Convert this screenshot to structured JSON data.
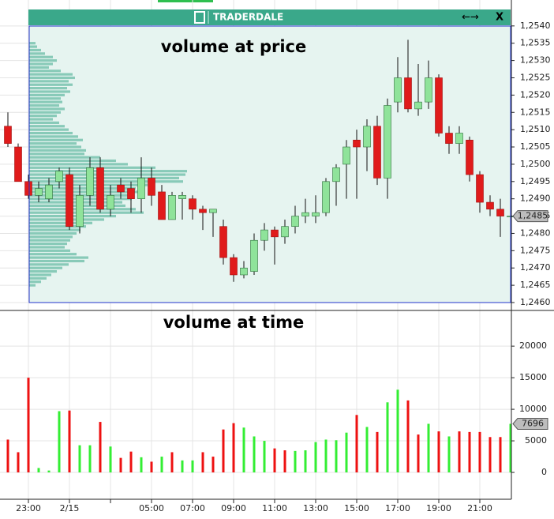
{
  "chart_data": [
    {
      "type": "candlestick",
      "annotation": "volume at price",
      "overlay_title": "TRADERDALE",
      "overlay_buttons": [
        "←→",
        "X"
      ],
      "open": [
        1.2511,
        1.2505,
        1.2495,
        1.2491,
        1.249,
        1.2495,
        1.2497,
        1.2482,
        1.2491,
        1.2499,
        1.2487,
        1.2494,
        1.2493,
        1.249,
        1.2496,
        1.2492,
        1.2484,
        1.249,
        1.249,
        1.2487,
        1.2486,
        1.2482,
        1.2473,
        1.2468,
        1.2469,
        1.2478,
        1.2481,
        1.2479,
        1.2482,
        1.2485,
        1.2485,
        1.2486,
        1.2495,
        1.25,
        1.2507,
        1.2505,
        1.2511,
        1.2496,
        1.2518,
        1.2525,
        1.2516,
        1.2518,
        1.2525,
        1.2509,
        1.2506,
        1.2507,
        1.2497,
        1.2489,
        1.2487,
        1.2485
      ],
      "high": [
        1.2515,
        1.2506,
        1.2497,
        1.2495,
        1.2496,
        1.2499,
        1.2499,
        1.2494,
        1.2502,
        1.2502,
        1.2494,
        1.2496,
        1.2495,
        1.2502,
        1.2499,
        1.2494,
        1.2492,
        1.2492,
        1.2491,
        1.2488,
        1.2487,
        1.2484,
        1.2474,
        1.2472,
        1.248,
        1.2483,
        1.2482,
        1.2484,
        1.2488,
        1.249,
        1.2491,
        1.2496,
        1.25,
        1.2507,
        1.251,
        1.2513,
        1.2514,
        1.2519,
        1.2531,
        1.2536,
        1.2529,
        1.253,
        1.2526,
        1.2511,
        1.2511,
        1.2508,
        1.2498,
        1.2491,
        1.249,
        1.2492
      ],
      "low": [
        1.2505,
        1.2495,
        1.249,
        1.2489,
        1.2489,
        1.2493,
        1.2481,
        1.248,
        1.2488,
        1.2486,
        1.2485,
        1.249,
        1.2486,
        1.2486,
        1.2488,
        1.2484,
        1.2484,
        1.2484,
        1.2484,
        1.2481,
        1.2479,
        1.2471,
        1.2466,
        1.2467,
        1.2468,
        1.2475,
        1.2471,
        1.2477,
        1.248,
        1.2483,
        1.2483,
        1.2485,
        1.2488,
        1.249,
        1.249,
        1.2498,
        1.2494,
        1.249,
        1.2515,
        1.2515,
        1.2514,
        1.2516,
        1.2508,
        1.2503,
        1.2503,
        1.2495,
        1.2486,
        1.2485,
        1.2479,
        1.2485
      ],
      "close": [
        1.2506,
        1.2495,
        1.2491,
        1.2493,
        1.2494,
        1.2498,
        1.2482,
        1.2491,
        1.2499,
        1.2487,
        1.2491,
        1.2492,
        1.249,
        1.2496,
        1.2491,
        1.2484,
        1.2491,
        1.2491,
        1.2487,
        1.2486,
        1.2487,
        1.2473,
        1.2468,
        1.247,
        1.2478,
        1.2481,
        1.2479,
        1.2482,
        1.2485,
        1.2486,
        1.2486,
        1.2495,
        1.2499,
        1.2505,
        1.2505,
        1.2511,
        1.2496,
        1.2517,
        1.2525,
        1.2516,
        1.2518,
        1.2525,
        1.2509,
        1.2506,
        1.2509,
        1.2497,
        1.2489,
        1.2487,
        1.2485,
        1.2485
      ],
      "up_color": "#8fe39a",
      "down_color": "#e01b1b",
      "ylim": [
        1.24584,
        1.25475
      ],
      "yticks": [
        {
          "value": 1.254,
          "label": "1,2540"
        },
        {
          "value": 1.2535,
          "label": "1,2535"
        },
        {
          "value": 1.253,
          "label": "1,2530"
        },
        {
          "value": 1.2525,
          "label": "1,2525"
        },
        {
          "value": 1.252,
          "label": "1,2520"
        },
        {
          "value": 1.2515,
          "label": "1,2515"
        },
        {
          "value": 1.251,
          "label": "1,2510"
        },
        {
          "value": 1.2505,
          "label": "1,2505"
        },
        {
          "value": 1.25,
          "label": "1,2500"
        },
        {
          "value": 1.2495,
          "label": "1,2495"
        },
        {
          "value": 1.249,
          "label": "1,2490"
        },
        {
          "value": 1.2485,
          "label": "1,2485"
        },
        {
          "value": 1.248,
          "label": "1,2480"
        },
        {
          "value": 1.2475,
          "label": "1,2475"
        },
        {
          "value": 1.247,
          "label": "1,2470"
        },
        {
          "value": 1.2465,
          "label": "1,2465"
        },
        {
          "value": 1.246,
          "label": "1,2460"
        }
      ],
      "last_price": {
        "value": 1.2485,
        "label": "1,2485"
      },
      "grid": true,
      "volume_profile": {
        "prices": [
          1.2535,
          1.2534,
          1.2533,
          1.2532,
          1.2531,
          1.253,
          1.2529,
          1.2528,
          1.2527,
          1.2526,
          1.2525,
          1.2524,
          1.2523,
          1.2522,
          1.2521,
          1.252,
          1.2519,
          1.2518,
          1.2517,
          1.2516,
          1.2515,
          1.2514,
          1.2513,
          1.2512,
          1.2511,
          1.251,
          1.2509,
          1.2508,
          1.2507,
          1.2506,
          1.2505,
          1.2504,
          1.2503,
          1.2502,
          1.2501,
          1.25,
          1.2499,
          1.2498,
          1.2497,
          1.2496,
          1.2495,
          1.2494,
          1.2493,
          1.2492,
          1.2491,
          1.249,
          1.2489,
          1.2488,
          1.2487,
          1.2486,
          1.2485,
          1.2484,
          1.2483,
          1.2482,
          1.2481,
          1.248,
          1.2479,
          1.2478,
          1.2477,
          1.2476,
          1.2475,
          1.2474,
          1.2473,
          1.2472,
          1.2471,
          1.247,
          1.2469,
          1.2468,
          1.2467,
          1.2466,
          1.2465
        ],
        "values": [
          8,
          10,
          15,
          20,
          30,
          35,
          30,
          25,
          40,
          55,
          58,
          50,
          55,
          48,
          52,
          45,
          40,
          42,
          38,
          45,
          40,
          35,
          30,
          38,
          45,
          50,
          55,
          62,
          68,
          60,
          66,
          72,
          70,
          90,
          110,
          125,
          160,
          200,
          198,
          190,
          195,
          150,
          135,
          140,
          128,
          130,
          118,
          122,
          135,
          145,
          110,
          95,
          80,
          72,
          65,
          60,
          55,
          52,
          48,
          45,
          52,
          60,
          75,
          70,
          50,
          42,
          35,
          28,
          22,
          15,
          8
        ],
        "xlim": [
          0,
          610
        ],
        "color": "#3aa88a"
      }
    },
    {
      "type": "bar",
      "annotation": "volume at time",
      "categories": [
        null,
        null,
        "23:00",
        null,
        null,
        null,
        "2/15",
        null,
        null,
        null,
        null,
        null,
        null,
        null,
        "05:00",
        null,
        null,
        null,
        "07:00",
        null,
        null,
        null,
        "09:00",
        null,
        null,
        null,
        "11:00",
        null,
        null,
        null,
        "13:00",
        null,
        null,
        null,
        "15:00",
        null,
        null,
        null,
        "17:00",
        null,
        null,
        null,
        "19:00",
        null,
        null,
        null,
        "21:00",
        null,
        null,
        null
      ],
      "values": [
        5200,
        3200,
        15000,
        700,
        300,
        9700,
        9800,
        4300,
        4300,
        8000,
        4100,
        2300,
        3300,
        2400,
        1700,
        2500,
        3200,
        1900,
        1900,
        3200,
        2500,
        6800,
        7800,
        7100,
        5700,
        5000,
        3800,
        3500,
        3400,
        3500,
        4800,
        5200,
        5100,
        6300,
        9100,
        7200,
        6400,
        11100,
        13100,
        11400,
        6000,
        7700,
        6500,
        5700,
        6500,
        6400,
        6400,
        5600,
        5600,
        7696
      ],
      "colors": [
        "#ee1111",
        "#ee1111",
        "#ee1111",
        "#33ee33",
        "#33ee33",
        "#33ee33",
        "#ee1111",
        "#33ee33",
        "#33ee33",
        "#ee1111",
        "#33ee33",
        "#ee1111",
        "#ee1111",
        "#33ee33",
        "#ee1111",
        "#33ee33",
        "#ee1111",
        "#33ee33",
        "#33ee33",
        "#ee1111",
        "#ee1111",
        "#ee1111",
        "#ee1111",
        "#33ee33",
        "#33ee33",
        "#33ee33",
        "#ee1111",
        "#ee1111",
        "#33ee33",
        "#33ee33",
        "#33ee33",
        "#33ee33",
        "#33ee33",
        "#33ee33",
        "#ee1111",
        "#33ee33",
        "#ee1111",
        "#33ee33",
        "#33ee33",
        "#ee1111",
        "#ee1111",
        "#33ee33",
        "#ee1111",
        "#33ee33",
        "#ee1111",
        "#ee1111",
        "#ee1111",
        "#ee1111",
        "#ee1111",
        "#33ee33"
      ],
      "ylim": [
        -4000,
        25400
      ],
      "yticks": [
        0,
        5000,
        10000,
        15000,
        20000
      ],
      "last_value": 7696,
      "grid": true
    }
  ]
}
